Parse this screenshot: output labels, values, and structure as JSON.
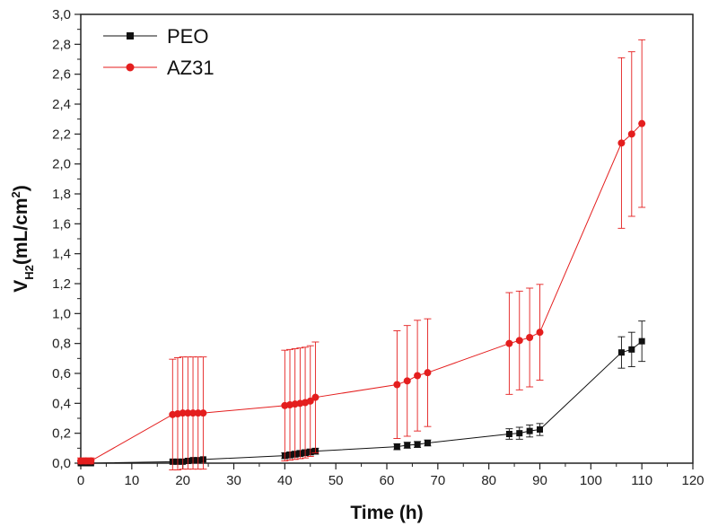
{
  "chart_data": {
    "type": "line",
    "title": "",
    "xlabel": "Time (h)",
    "ylabel": {
      "main": "V",
      "sub": "H2",
      "unit_pre": "(mL/cm",
      "sup": "2",
      "unit_post": ")"
    },
    "xlim": [
      0,
      120
    ],
    "ylim": [
      0,
      3.0
    ],
    "x_ticks": [
      0,
      10,
      20,
      30,
      40,
      50,
      60,
      70,
      80,
      90,
      100,
      110,
      120
    ],
    "y_ticks": [
      0,
      0.2,
      0.4,
      0.6,
      0.8,
      1.0,
      1.2,
      1.4,
      1.6,
      1.8,
      2.0,
      2.2,
      2.4,
      2.6,
      2.8,
      3.0
    ],
    "y_tick_labels": [
      "0,0",
      "0,2",
      "0,4",
      "0,6",
      "0,8",
      "1,0",
      "1,2",
      "1,4",
      "1,6",
      "1,8",
      "2,0",
      "2,2",
      "2,4",
      "2,6",
      "2,8",
      "3,0"
    ],
    "x_tick_labels": [
      "0",
      "10",
      "20",
      "30",
      "40",
      "50",
      "60",
      "70",
      "80",
      "90",
      "100",
      "110",
      "120"
    ],
    "legend_position": "top-left",
    "grid": false,
    "series": [
      {
        "name": "PEO",
        "color": "#111111",
        "marker": "square",
        "x": [
          0,
          1,
          2,
          18,
          19,
          20,
          21,
          22,
          23,
          24,
          40,
          41,
          42,
          43,
          44,
          45,
          46,
          62,
          64,
          66,
          68,
          84,
          86,
          88,
          90,
          106,
          108,
          110
        ],
        "y": [
          0.0,
          0.0,
          0.0,
          0.01,
          0.01,
          0.01,
          0.015,
          0.02,
          0.02,
          0.025,
          0.05,
          0.055,
          0.06,
          0.065,
          0.07,
          0.075,
          0.08,
          0.11,
          0.12,
          0.125,
          0.135,
          0.195,
          0.2,
          0.215,
          0.225,
          0.74,
          0.76,
          0.815
        ],
        "err": [
          0,
          0,
          0,
          0,
          0,
          0,
          0,
          0,
          0,
          0,
          0.02,
          0.02,
          0.02,
          0.02,
          0.02,
          0.02,
          0.02,
          0.02,
          0.02,
          0.02,
          0.02,
          0.035,
          0.04,
          0.04,
          0.04,
          0.105,
          0.115,
          0.135
        ]
      },
      {
        "name": "AZ31",
        "color": "#e41e1e",
        "marker": "circle",
        "x": [
          0,
          1,
          2,
          18,
          19,
          20,
          21,
          22,
          23,
          24,
          40,
          41,
          42,
          43,
          44,
          45,
          46,
          62,
          64,
          66,
          68,
          84,
          86,
          88,
          90,
          106,
          108,
          110
        ],
        "y": [
          0.015,
          0.015,
          0.015,
          0.325,
          0.33,
          0.335,
          0.335,
          0.335,
          0.335,
          0.335,
          0.385,
          0.39,
          0.395,
          0.4,
          0.405,
          0.415,
          0.44,
          0.525,
          0.55,
          0.585,
          0.605,
          0.8,
          0.82,
          0.84,
          0.875,
          2.14,
          2.2,
          2.27
        ],
        "err": [
          0.02,
          0.02,
          0.02,
          0.37,
          0.375,
          0.375,
          0.375,
          0.375,
          0.375,
          0.375,
          0.37,
          0.37,
          0.37,
          0.37,
          0.37,
          0.37,
          0.37,
          0.36,
          0.37,
          0.37,
          0.36,
          0.34,
          0.33,
          0.33,
          0.32,
          0.57,
          0.55,
          0.56
        ]
      }
    ]
  }
}
